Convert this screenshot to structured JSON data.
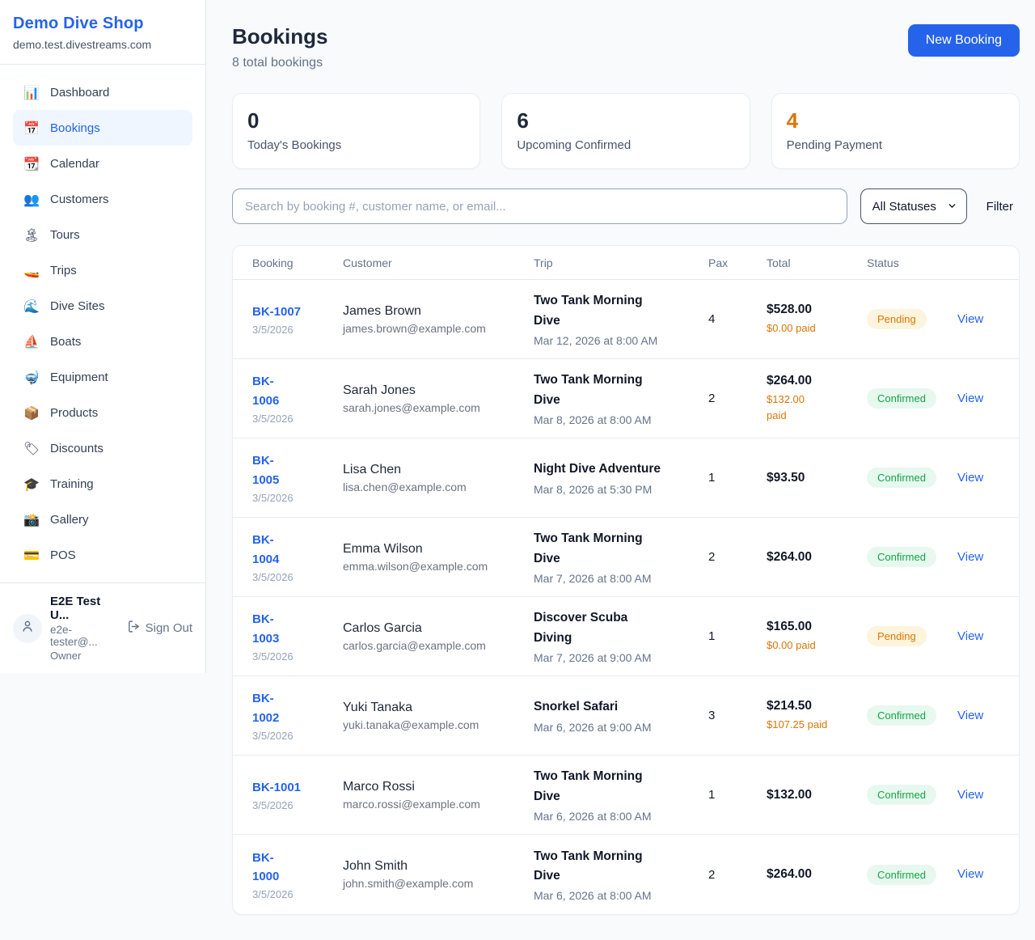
{
  "brand": {
    "name": "Demo Dive Shop",
    "domain": "demo.test.divestreams.com"
  },
  "sidebar": {
    "items": [
      {
        "name": "dashboard",
        "glyph": "📊",
        "label": "Dashboard",
        "active": false
      },
      {
        "name": "bookings",
        "glyph": "📅",
        "label": "Bookings",
        "active": true
      },
      {
        "name": "calendar",
        "glyph": "📆",
        "label": "Calendar",
        "active": false
      },
      {
        "name": "customers",
        "glyph": "👥",
        "label": "Customers",
        "active": false
      },
      {
        "name": "tours",
        "glyph": "🏝",
        "label": "Tours",
        "active": false
      },
      {
        "name": "trips",
        "glyph": "🚤",
        "label": "Trips",
        "active": false
      },
      {
        "name": "dive-sites",
        "glyph": "🌊",
        "label": "Dive Sites",
        "active": false
      },
      {
        "name": "boats",
        "glyph": "⛵",
        "label": "Boats",
        "active": false
      },
      {
        "name": "equipment",
        "glyph": "🤿",
        "label": "Equipment",
        "active": false
      },
      {
        "name": "products",
        "glyph": "📦",
        "label": "Products",
        "active": false
      },
      {
        "name": "discounts",
        "glyph": "🏷",
        "label": "Discounts",
        "active": false
      },
      {
        "name": "training",
        "glyph": "🎓",
        "label": "Training",
        "active": false
      },
      {
        "name": "gallery",
        "glyph": "📸",
        "label": "Gallery",
        "active": false
      },
      {
        "name": "pos",
        "glyph": "💳",
        "label": "POS",
        "active": false
      }
    ]
  },
  "user": {
    "name": "E2E Test U...",
    "email": "e2e-tester@...",
    "role": "Owner",
    "sign_out_label": "Sign Out"
  },
  "header": {
    "title": "Bookings",
    "subtitle": "8 total bookings",
    "new_booking_label": "New Booking"
  },
  "stats": [
    {
      "value": "0",
      "label": "Today's Bookings",
      "accent": false
    },
    {
      "value": "6",
      "label": "Upcoming Confirmed",
      "accent": false
    },
    {
      "value": "4",
      "label": "Pending Payment",
      "accent": true
    }
  ],
  "filters": {
    "search_placeholder": "Search by booking #, customer name, or email...",
    "status_selected": "All Statuses",
    "filter_label": "Filter"
  },
  "colors": {
    "accent_blue": "#2563eb",
    "pending_orange": "#d97706",
    "confirmed_green": "#16a34a"
  },
  "table": {
    "columns": [
      "Booking",
      "Customer",
      "Trip",
      "Pax",
      "Total",
      "Status"
    ],
    "view_label": "View",
    "rows": [
      {
        "id": "BK-1007",
        "date": "3/5/2026",
        "customer": "James Brown",
        "email": "james.brown@example.com",
        "trip": "Two Tank Morning\nDive",
        "trip_date": "Mar 12, 2026 at 8:00 AM",
        "pax": "4",
        "total": "$528.00",
        "paid": "$0.00 paid",
        "status": "Pending"
      },
      {
        "id": "BK-\n1006",
        "date": "3/5/2026",
        "customer": "Sarah Jones",
        "email": "sarah.jones@example.com",
        "trip": "Two Tank Morning\nDive",
        "trip_date": "Mar 8, 2026 at 8:00 AM",
        "pax": "2",
        "total": "$264.00",
        "paid": "$132.00\npaid",
        "status": "Confirmed"
      },
      {
        "id": "BK-\n1005",
        "date": "3/5/2026",
        "customer": "Lisa Chen",
        "email": "lisa.chen@example.com",
        "trip": "Night Dive Adventure",
        "trip_date": "Mar 8, 2026 at 5:30 PM",
        "pax": "1",
        "total": "$93.50",
        "paid": null,
        "status": "Confirmed"
      },
      {
        "id": "BK-\n1004",
        "date": "3/5/2026",
        "customer": "Emma Wilson",
        "email": "emma.wilson@example.com",
        "trip": "Two Tank Morning\nDive",
        "trip_date": "Mar 7, 2026 at 8:00 AM",
        "pax": "2",
        "total": "$264.00",
        "paid": null,
        "status": "Confirmed"
      },
      {
        "id": "BK-\n1003",
        "date": "3/5/2026",
        "customer": "Carlos Garcia",
        "email": "carlos.garcia@example.com",
        "trip": "Discover Scuba\nDiving",
        "trip_date": "Mar 7, 2026 at 9:00 AM",
        "pax": "1",
        "total": "$165.00",
        "paid": "$0.00 paid",
        "status": "Pending"
      },
      {
        "id": "BK-\n1002",
        "date": "3/5/2026",
        "customer": "Yuki Tanaka",
        "email": "yuki.tanaka@example.com",
        "trip": "Snorkel Safari",
        "trip_date": "Mar 6, 2026 at 9:00 AM",
        "pax": "3",
        "total": "$214.50",
        "paid": "$107.25 paid",
        "status": "Confirmed"
      },
      {
        "id": "BK-1001",
        "date": "3/5/2026",
        "customer": "Marco Rossi",
        "email": "marco.rossi@example.com",
        "trip": "Two Tank Morning\nDive",
        "trip_date": "Mar 6, 2026 at 8:00 AM",
        "pax": "1",
        "total": "$132.00",
        "paid": null,
        "status": "Confirmed"
      },
      {
        "id": "BK-\n1000",
        "date": "3/5/2026",
        "customer": "John Smith",
        "email": "john.smith@example.com",
        "trip": "Two Tank Morning\nDive",
        "trip_date": "Mar 6, 2026 at 8:00 AM",
        "pax": "2",
        "total": "$264.00",
        "paid": null,
        "status": "Confirmed"
      }
    ]
  }
}
